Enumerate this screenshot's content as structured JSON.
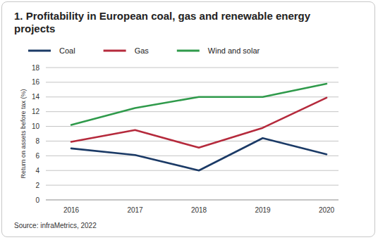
{
  "chart_data": {
    "type": "line",
    "title": "1. Profitability in European coal, gas and renewable energy projects",
    "y_label": "Return on assets before tax (%)",
    "source": "Source: infraMetrics, 2022",
    "categories": [
      "2016",
      "2017",
      "2018",
      "2019",
      "2020"
    ],
    "series": [
      {
        "name": "Coal",
        "color": "#1b3a66",
        "values": [
          7.0,
          6.1,
          4.0,
          8.4,
          6.2
        ]
      },
      {
        "name": "Gas",
        "color": "#b52a3c",
        "values": [
          7.9,
          9.5,
          7.1,
          9.8,
          13.9
        ]
      },
      {
        "name": "Wind and solar",
        "color": "#2f9a4b",
        "values": [
          10.2,
          12.5,
          14.0,
          14.0,
          15.8
        ]
      }
    ],
    "ylim": [
      0,
      18
    ],
    "yticks": [
      0,
      2,
      4,
      6,
      8,
      10,
      12,
      14,
      16,
      18
    ],
    "grid": true,
    "legend": "top"
  }
}
